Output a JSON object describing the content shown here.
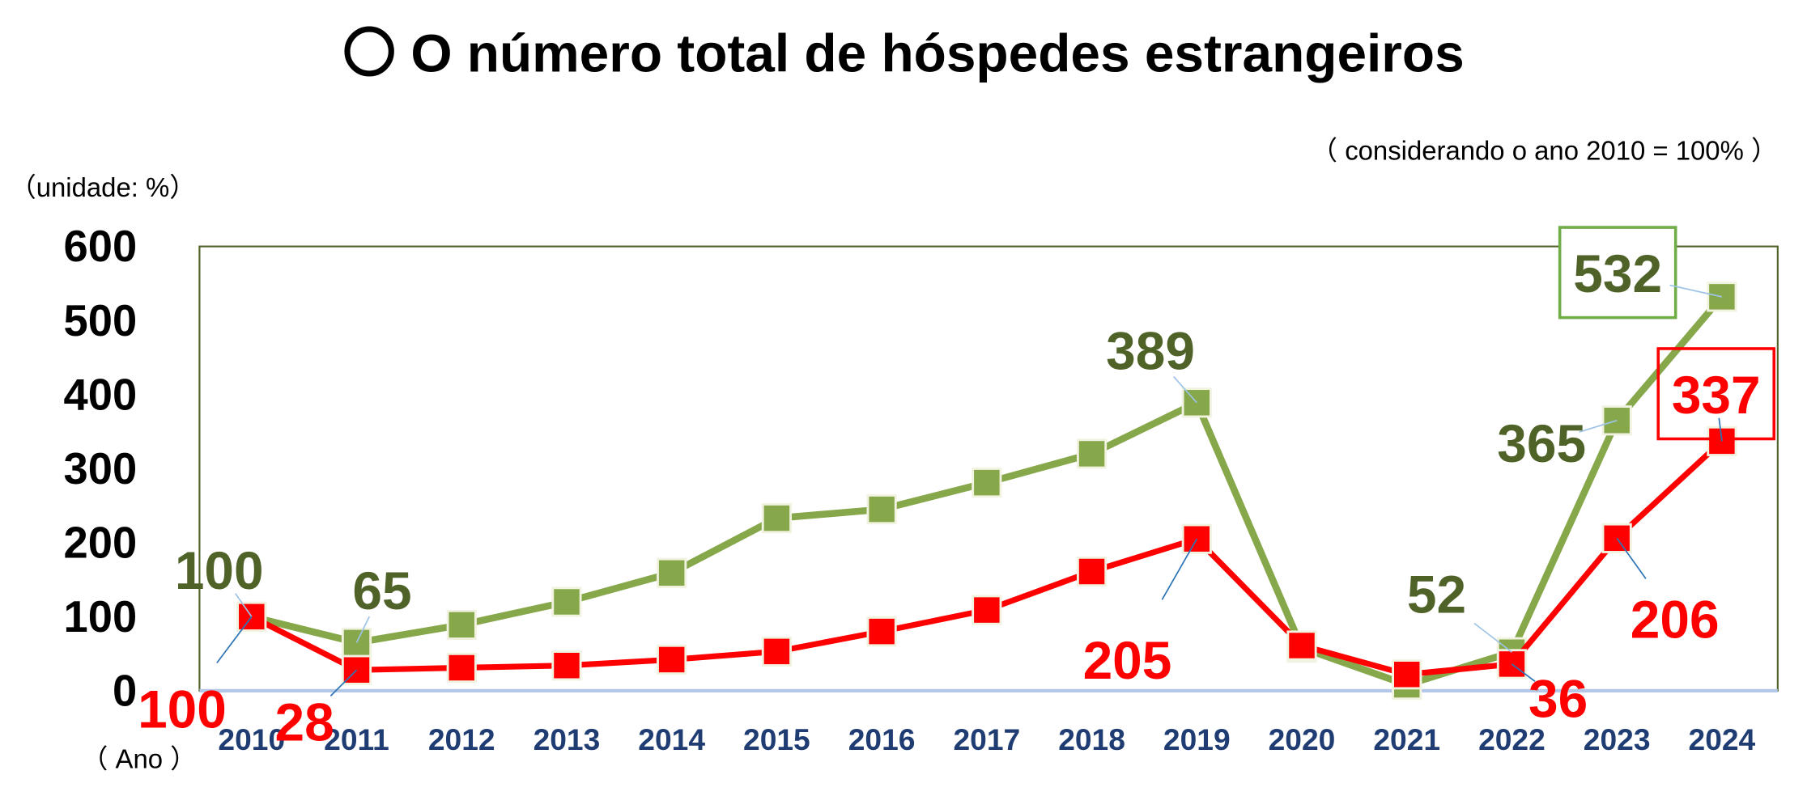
{
  "chart_data": {
    "type": "line",
    "title": "〇 O número total de hóspedes estrangeiros",
    "subtitle": "（ considerando o ano 2010 = 100% ）",
    "ylabel": "（unidade: %）",
    "xlabel": "（ Ano ）",
    "ylim": [
      0,
      600
    ],
    "yticks": [
      0,
      100,
      200,
      300,
      400,
      500,
      600
    ],
    "grid": false,
    "categories": [
      "2010",
      "2011",
      "2012",
      "2013",
      "2014",
      "2015",
      "2016",
      "2017",
      "2018",
      "2019",
      "2020",
      "2021",
      "2022",
      "2023",
      "2024"
    ],
    "series": [
      {
        "color": "#86a84a",
        "label_color": "#4f6228",
        "values": [
          100,
          65,
          89,
          120,
          159,
          233,
          245,
          281,
          320,
          389,
          58,
          8,
          52,
          365,
          532
        ],
        "data_labels": [
          {
            "year": "2010",
            "text": "100"
          },
          {
            "year": "2011",
            "text": "65"
          },
          {
            "year": "2019",
            "text": "389"
          },
          {
            "year": "2022",
            "text": "52"
          },
          {
            "year": "2023",
            "text": "365"
          },
          {
            "year": "2024",
            "text": "532",
            "boxed": true
          }
        ]
      },
      {
        "color": "#ff0000",
        "label_color": "#ff0000",
        "values": [
          100,
          28,
          31,
          34,
          42,
          53,
          80,
          109,
          161,
          205,
          61,
          22,
          36,
          206,
          337
        ],
        "data_labels": [
          {
            "year": "2010",
            "text": "100"
          },
          {
            "year": "2011",
            "text": "28"
          },
          {
            "year": "2019",
            "text": "205"
          },
          {
            "year": "2022",
            "text": "36"
          },
          {
            "year": "2023",
            "text": "206"
          },
          {
            "year": "2024",
            "text": "337",
            "boxed": true
          }
        ]
      }
    ]
  }
}
